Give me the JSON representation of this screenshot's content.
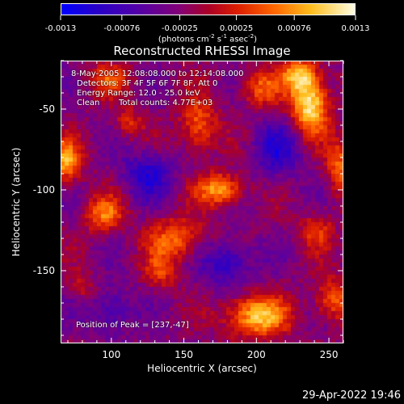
{
  "chart_data": {
    "type": "heatmap",
    "title": "Reconstructed RHESSI Image",
    "xlabel": "Heliocentric X (arcsec)",
    "ylabel": "Heliocentric Y (arcsec)",
    "xlim": [
      65,
      260
    ],
    "ylim": [
      -195,
      -20
    ],
    "xticks": [
      "100",
      "150",
      "200",
      "250"
    ],
    "yticks": [
      "-50",
      "-100",
      "-150"
    ],
    "colorbar": {
      "ticks": [
        "-0.0013",
        "-0.00076",
        "-0.00025",
        "0.00025",
        "0.00076",
        "0.0013"
      ],
      "range": [
        -0.0013,
        0.0013
      ],
      "units_prefix": "(photons cm",
      "units_sup1": "-2",
      "units_mid1": " s",
      "units_sup2": "-1",
      "units_mid2": " asec",
      "units_sup3": "-2",
      "units_suffix": ")"
    },
    "annotations": {
      "time": "8-May-2005 12:08:08.000 to 12:14:08.000",
      "detectors": "Detectors: 3F 4F 5F 6F 7F 8F, Att 0",
      "energy": "Energy Range: 12.0 - 25.0 keV",
      "method": "Clean",
      "counts": "Total counts: 4.77E+03",
      "peak": "Position of Peak = [237,-47]"
    },
    "peak": [
      237,
      -47
    ],
    "sources": [
      {
        "x": 237,
        "y": -47,
        "amp": 1.0,
        "sx": 9,
        "sy": 13
      },
      {
        "x": 229,
        "y": -29,
        "amp": 0.7,
        "sx": 8,
        "sy": 7
      },
      {
        "x": 203,
        "y": -37,
        "amp": 0.5,
        "sx": 10,
        "sy": 8
      },
      {
        "x": 98,
        "y": -32,
        "amp": 0.45,
        "sx": 10,
        "sy": 7
      },
      {
        "x": 68,
        "y": -82,
        "amp": 0.75,
        "sx": 8,
        "sy": 9
      },
      {
        "x": 160,
        "y": -60,
        "amp": 0.55,
        "sx": 9,
        "sy": 12
      },
      {
        "x": 175,
        "y": -100,
        "amp": 0.75,
        "sx": 11,
        "sy": 7
      },
      {
        "x": 145,
        "y": -130,
        "amp": 0.55,
        "sx": 14,
        "sy": 9
      },
      {
        "x": 258,
        "y": -85,
        "amp": 0.55,
        "sx": 7,
        "sy": 12
      },
      {
        "x": 95,
        "y": -115,
        "amp": 0.6,
        "sx": 9,
        "sy": 8
      },
      {
        "x": 200,
        "y": -178,
        "amp": 0.85,
        "sx": 15,
        "sy": 9
      },
      {
        "x": 253,
        "y": -168,
        "amp": 0.55,
        "sx": 9,
        "sy": 9
      },
      {
        "x": 135,
        "y": -150,
        "amp": 0.4,
        "sx": 8,
        "sy": 8
      },
      {
        "x": 112,
        "y": -58,
        "amp": 0.35,
        "sx": 7,
        "sy": 7
      },
      {
        "x": 242,
        "y": -125,
        "amp": 0.4,
        "sx": 8,
        "sy": 8
      },
      {
        "x": 80,
        "y": -160,
        "amp": 0.3,
        "sx": 6,
        "sy": 6
      },
      {
        "x": 180,
        "y": -145,
        "amp": -0.5,
        "sx": 12,
        "sy": 10
      },
      {
        "x": 125,
        "y": -90,
        "amp": -0.5,
        "sx": 12,
        "sy": 10
      },
      {
        "x": 215,
        "y": -75,
        "amp": -0.45,
        "sx": 12,
        "sy": 12
      },
      {
        "x": 100,
        "y": -175,
        "amp": -0.4,
        "sx": 10,
        "sy": 10
      }
    ]
  },
  "footer": {
    "timestamp": "29-Apr-2022 19:46"
  }
}
